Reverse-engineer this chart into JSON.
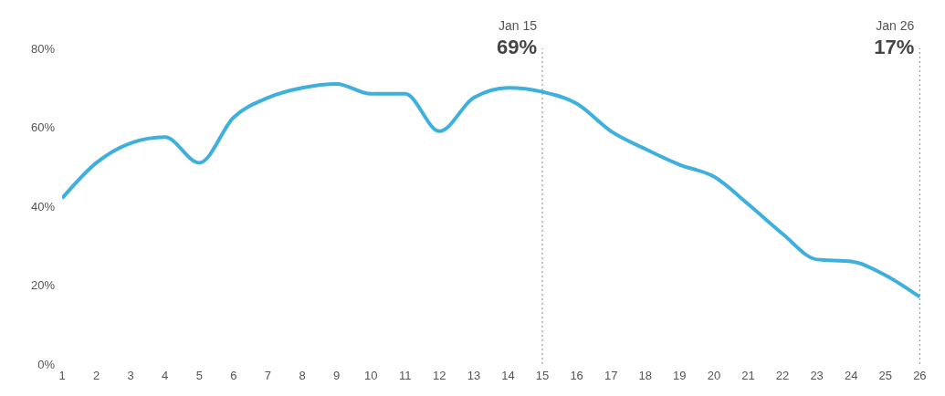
{
  "chart_data": {
    "type": "line",
    "x": [
      1,
      2,
      3,
      4,
      5,
      6,
      7,
      8,
      9,
      10,
      11,
      12,
      13,
      14,
      15,
      16,
      17,
      18,
      19,
      20,
      21,
      22,
      23,
      24,
      25,
      26
    ],
    "series": [
      {
        "color": "#3fb0dc",
        "values": [
          42,
          51,
          56,
          57.5,
          51,
          62.5,
          67.5,
          70,
          71,
          68.5,
          68.5,
          59,
          67.5,
          70,
          69,
          66,
          59,
          54.5,
          50.5,
          47.5,
          40.5,
          33,
          26.5,
          26,
          22.5,
          17
        ]
      }
    ],
    "xlim": [
      1,
      26.15
    ],
    "xticks": [
      1,
      2,
      3,
      4,
      5,
      6,
      7,
      8,
      9,
      10,
      11,
      12,
      13,
      14,
      15,
      16,
      17,
      18,
      19,
      20,
      21,
      22,
      23,
      24,
      25,
      26
    ],
    "ylim": [
      0,
      80
    ],
    "yticks": [
      {
        "value": 0,
        "label": "0%"
      },
      {
        "value": 20,
        "label": "20%"
      },
      {
        "value": 40,
        "label": "40%"
      },
      {
        "value": 60,
        "label": "60%"
      },
      {
        "value": 80,
        "label": "80%"
      }
    ],
    "ref_lines": [
      {
        "axis": "x",
        "value": 15,
        "label": "Jan 15",
        "color": "#888888",
        "line_style": "dotted"
      },
      {
        "axis": "x",
        "value": 26,
        "label": "Jan 26",
        "color": "#888888",
        "line_style": "dotted"
      }
    ],
    "annotations": [
      "69%",
      "17%"
    ],
    "grid": false,
    "legend": false,
    "marker": "none",
    "line_style": "solid"
  }
}
